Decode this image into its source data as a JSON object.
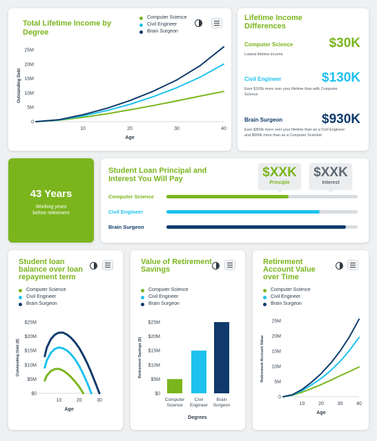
{
  "colors": {
    "green": "#7ab51d",
    "cyan": "#1ec1ee",
    "navy": "#0f3a6b",
    "track": "#d9dcdf"
  },
  "legend": [
    "Computer Science",
    "Civil Engineer",
    "Brain Surgeon"
  ],
  "chart_data": [
    {
      "type": "line",
      "title": "Total Lifetime Income by Degree",
      "xlabel": "Age",
      "ylabel": "Outstanding Debt",
      "x_ticks": [
        "10",
        "20",
        "30",
        "40"
      ],
      "y_ticks": [
        "0",
        "5M",
        "10M",
        "15M",
        "20M",
        "25M"
      ],
      "xlim": [
        0,
        40
      ],
      "ylim": [
        0,
        25
      ],
      "series": [
        {
          "name": "Computer Science",
          "x": [
            0,
            5,
            10,
            15,
            20,
            25,
            30,
            35,
            40
          ],
          "y": [
            0,
            0.5,
            1.5,
            2.7,
            4.1,
            5.6,
            7.2,
            8.9,
            10.5
          ]
        },
        {
          "name": "Civil Engineer",
          "x": [
            0,
            5,
            10,
            15,
            20,
            25,
            30,
            35,
            40
          ],
          "y": [
            0,
            0.6,
            2.0,
            3.8,
            6.0,
            8.7,
            11.8,
            15.5,
            20.0
          ]
        },
        {
          "name": "Brain Surgeon",
          "x": [
            0,
            5,
            10,
            15,
            20,
            25,
            30,
            35,
            40
          ],
          "y": [
            0,
            0.7,
            2.4,
            4.6,
            7.3,
            10.6,
            14.5,
            19.5,
            26.0
          ]
        }
      ]
    },
    {
      "type": "line",
      "title": "Student loan balance over loan repayment term",
      "xlabel": "Age",
      "ylabel": "Outstanding Debt ($)",
      "x_ticks": [
        "10",
        "20",
        "30"
      ],
      "y_ticks": [
        "$0",
        "$5M",
        "$10M",
        "$15M",
        "$20M",
        "$25M"
      ],
      "xlim": [
        0,
        30
      ],
      "ylim": [
        0,
        25
      ],
      "series": [
        {
          "name": "Computer Science",
          "x": [
            3,
            4,
            6,
            8,
            10,
            12,
            14,
            16,
            18,
            20,
            22
          ],
          "y": [
            4.5,
            6.2,
            7.8,
            8.5,
            8.6,
            8.0,
            7.0,
            5.7,
            4.1,
            2.3,
            0
          ]
        },
        {
          "name": "Civil Engineer",
          "x": [
            3,
            4,
            6,
            8,
            10,
            12,
            14,
            16,
            18,
            20,
            22,
            24,
            26
          ],
          "y": [
            9.0,
            11.5,
            14.2,
            15.6,
            16.1,
            15.8,
            15.0,
            13.7,
            11.9,
            9.6,
            6.8,
            3.6,
            0
          ]
        },
        {
          "name": "Brain Surgeon",
          "x": [
            3,
            4,
            6,
            8,
            10,
            12,
            14,
            16,
            18,
            20,
            22,
            24,
            26,
            28,
            30
          ],
          "y": [
            13.0,
            16.0,
            19.0,
            20.6,
            21.3,
            21.3,
            20.6,
            19.5,
            17.9,
            15.9,
            13.4,
            10.5,
            7.2,
            3.7,
            0
          ]
        }
      ]
    },
    {
      "type": "bar",
      "title": "Value of Retirement Savings",
      "xlabel": "Degrees",
      "ylabel": "Retirement Savings ($)",
      "categories": [
        "Computer Science",
        "Civil Engineer",
        "Brain Surgeon"
      ],
      "category_lines": [
        [
          "Computer",
          "Science"
        ],
        [
          "Civil",
          "Engineer"
        ],
        [
          "Brain",
          "Surgeon"
        ]
      ],
      "values": [
        5,
        15,
        25
      ],
      "y_ticks": [
        "$0",
        "$5M",
        "$10M",
        "$15M",
        "$20M",
        "$25M"
      ],
      "ylim": [
        0,
        25
      ]
    },
    {
      "type": "line",
      "title": "Retirement Account Value over Time",
      "xlabel": "Age",
      "ylabel": "Retirement Account Value",
      "x_ticks": [
        "10",
        "20",
        "30",
        "40"
      ],
      "y_ticks": [
        "0",
        "5M",
        "10M",
        "15M",
        "20M",
        "25M"
      ],
      "xlim": [
        0,
        40
      ],
      "ylim": [
        0,
        25
      ],
      "series": [
        {
          "name": "Computer Science",
          "x": [
            0,
            5,
            10,
            15,
            20,
            25,
            30,
            35,
            40
          ],
          "y": [
            0,
            0.5,
            1.5,
            2.7,
            4.0,
            5.4,
            6.9,
            8.3,
            9.8
          ]
        },
        {
          "name": "Civil Engineer",
          "x": [
            0,
            5,
            10,
            15,
            20,
            25,
            30,
            35,
            40
          ],
          "y": [
            0,
            0.6,
            2.0,
            3.9,
            6.0,
            8.6,
            11.6,
            15.3,
            19.5
          ]
        },
        {
          "name": "Brain Surgeon",
          "x": [
            0,
            5,
            10,
            15,
            20,
            25,
            30,
            35,
            40
          ],
          "y": [
            0,
            0.7,
            2.4,
            4.8,
            7.6,
            11.0,
            15.0,
            19.8,
            25.5
          ]
        }
      ]
    }
  ],
  "differences": {
    "title": "Lifetime Income Differences",
    "items": [
      {
        "label": "Computer Science",
        "value": "$30K",
        "note": [
          "Lowest lifetime income"
        ]
      },
      {
        "label": "Civil Engineer",
        "value": "$130K",
        "note": [
          "Earn $100k more over your lifetime than with Computer",
          "Science"
        ]
      },
      {
        "label": "Brain Surgeon",
        "value": "$930K",
        "note": [
          "Earn $800k more over your lifetime than as a Civil Engineer",
          "and $900k more than as a Computer Scientist"
        ]
      }
    ]
  },
  "years": {
    "value": "43 Years",
    "caption_line1": "Working years",
    "caption_line2": "before retirement"
  },
  "loan": {
    "title": "Student Loan Principal and Interest You Will Pay",
    "badges": [
      {
        "value": "$XXK",
        "caption": "Principle"
      },
      {
        "value": "$XXK",
        "caption": "Interest"
      }
    ],
    "rows": [
      {
        "label": "Computer Science",
        "fraction": 0.64
      },
      {
        "label": "Civil Engineer",
        "fraction": 0.8
      },
      {
        "label": "Brain Surgeon",
        "fraction": 0.94
      }
    ]
  }
}
